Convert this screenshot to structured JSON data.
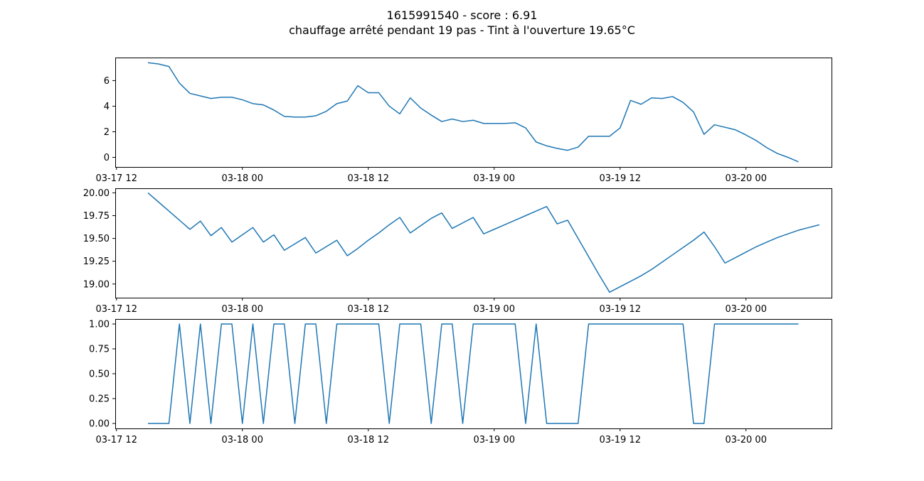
{
  "figure": {
    "title_line1": "1615991540 - score : 6.91",
    "title_line2": "chauffage arrêté pendant 19 pas - Tint à l'ouverture 19.65°C"
  },
  "chart_data": [
    {
      "type": "line",
      "series": [
        {
          "color": "#1f77b4",
          "values": [
            7.4,
            7.3,
            7.1,
            5.8,
            5.0,
            4.8,
            4.6,
            4.7,
            4.7,
            4.5,
            4.2,
            4.1,
            3.7,
            3.2,
            3.15,
            3.15,
            3.25,
            3.6,
            4.2,
            4.4,
            5.6,
            5.05,
            5.05,
            4.0,
            3.4,
            4.65,
            3.85,
            3.3,
            2.8,
            3.0,
            2.8,
            2.9,
            2.65,
            2.65,
            2.65,
            2.7,
            2.3,
            1.2,
            0.9,
            0.7,
            0.55,
            0.8,
            1.65,
            1.65,
            1.65,
            2.3,
            4.45,
            4.15,
            4.65,
            4.6,
            4.75,
            4.3,
            3.55,
            1.8,
            2.55,
            2.35,
            2.15,
            1.75,
            1.3,
            0.75,
            0.3,
            0.0,
            -0.35
          ]
        }
      ],
      "x_start": "2021-03-17 15:00",
      "x_step_hours": 1,
      "xticks": [
        "03-17 12",
        "03-18 00",
        "03-18 12",
        "03-19 00",
        "03-19 12",
        "03-20 00"
      ],
      "yticks": [
        "0",
        "2",
        "4",
        "6"
      ],
      "ylim": [
        -0.75,
        7.8
      ]
    },
    {
      "type": "line",
      "series": [
        {
          "color": "#1f77b4",
          "values": [
            20.0,
            19.9,
            19.8,
            19.7,
            19.6,
            19.69,
            19.53,
            19.62,
            19.46,
            19.54,
            19.62,
            19.46,
            19.54,
            19.37,
            19.44,
            19.51,
            19.34,
            19.41,
            19.48,
            19.31,
            19.39,
            19.48,
            19.56,
            19.65,
            19.73,
            19.56,
            19.64,
            19.72,
            19.78,
            19.61,
            19.67,
            19.73,
            19.55,
            19.6,
            19.65,
            19.7,
            19.75,
            19.8,
            19.85,
            19.66,
            19.7,
            19.5,
            19.3,
            19.1,
            18.91,
            18.97,
            19.03,
            19.09,
            19.16,
            19.24,
            19.32,
            19.4,
            19.48,
            19.57,
            19.41,
            19.23,
            19.29,
            19.35,
            19.41,
            19.46,
            19.51,
            19.55,
            19.59,
            19.62,
            19.65
          ]
        }
      ],
      "x_start": "2021-03-17 15:00",
      "x_step_hours": 1,
      "xticks": [
        "03-17 12",
        "03-18 00",
        "03-18 12",
        "03-19 00",
        "03-19 12",
        "03-20 00"
      ],
      "yticks": [
        "19.00",
        "19.25",
        "19.50",
        "19.75",
        "20.00"
      ],
      "ylim": [
        18.85,
        20.05
      ]
    },
    {
      "type": "line",
      "series": [
        {
          "color": "#1f77b4",
          "values": [
            0,
            0,
            0,
            1,
            0,
            1,
            0,
            1,
            1,
            0,
            1,
            0,
            1,
            1,
            0,
            1,
            1,
            0,
            1,
            1,
            1,
            1,
            1,
            0,
            1,
            1,
            1,
            0,
            1,
            1,
            0,
            1,
            1,
            1,
            1,
            1,
            0,
            1,
            0,
            0,
            0,
            0,
            1,
            1,
            1,
            1,
            1,
            1,
            1,
            1,
            1,
            1,
            0,
            0,
            1,
            1,
            1,
            1,
            1,
            1,
            1,
            1,
            1
          ]
        }
      ],
      "x_start": "2021-03-17 15:00",
      "x_step_hours": 1,
      "xticks": [
        "03-17 12",
        "03-18 00",
        "03-18 12",
        "03-19 00",
        "03-19 12",
        "03-20 00"
      ],
      "yticks": [
        "0.00",
        "0.25",
        "0.50",
        "0.75",
        "1.00"
      ],
      "ylim": [
        -0.05,
        1.05
      ]
    }
  ]
}
